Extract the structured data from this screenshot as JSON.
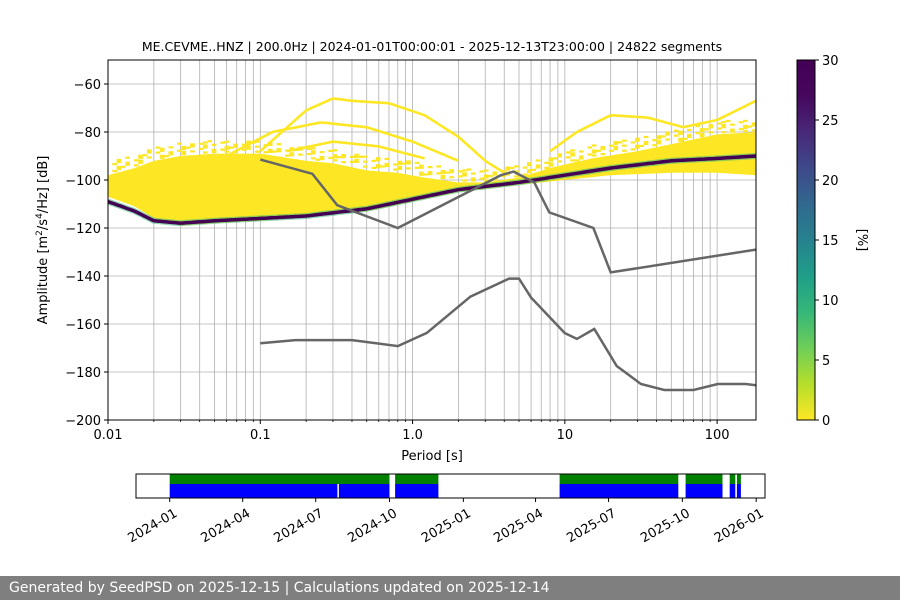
{
  "chart_data": {
    "type": "heatmap",
    "title": "ME.CEVME..HNZ | 200.0Hz | 2024-01-01T00:00:01 - 2025-12-13T23:00:00 | 24822 segments",
    "xlabel": "Period [s]",
    "ylabel_main": "Amplitude [m",
    "ylabel_sup1": "2",
    "ylabel_mid": "/s",
    "ylabel_sup2": "4",
    "ylabel_end": "/Hz] [dB]",
    "x_scale": "log",
    "xlim": [
      0.01,
      180
    ],
    "ylim": [
      -200,
      -50
    ],
    "grid": true,
    "x_ticks": [
      {
        "value": 0.01,
        "label": "0.01"
      },
      {
        "value": 0.1,
        "label": "0.1"
      },
      {
        "value": 1,
        "label": "1.0"
      },
      {
        "value": 10,
        "label": "10"
      },
      {
        "value": 100,
        "label": "100"
      }
    ],
    "y_ticks": [
      {
        "value": -60,
        "label": "−60"
      },
      {
        "value": -80,
        "label": "−80"
      },
      {
        "value": -100,
        "label": "−100"
      },
      {
        "value": -120,
        "label": "−120"
      },
      {
        "value": -140,
        "label": "−140"
      },
      {
        "value": -160,
        "label": "−160"
      },
      {
        "value": -180,
        "label": "−180"
      },
      {
        "value": -200,
        "label": "−200"
      }
    ],
    "colorbar": {
      "label": "[%]",
      "range": [
        0,
        30
      ],
      "colormap": "viridis_r",
      "ticks": [
        {
          "value": 0,
          "label": "0"
        },
        {
          "value": 5,
          "label": "5"
        },
        {
          "value": 10,
          "label": "10"
        },
        {
          "value": 15,
          "label": "15"
        },
        {
          "value": 20,
          "label": "20"
        },
        {
          "value": 25,
          "label": "25"
        },
        {
          "value": 30,
          "label": "30"
        }
      ]
    },
    "mode_line": [
      {
        "x": 0.01,
        "y": -109
      },
      {
        "x": 0.015,
        "y": -113
      },
      {
        "x": 0.02,
        "y": -117
      },
      {
        "x": 0.03,
        "y": -118
      },
      {
        "x": 0.05,
        "y": -117
      },
      {
        "x": 0.1,
        "y": -116
      },
      {
        "x": 0.2,
        "y": -115
      },
      {
        "x": 0.5,
        "y": -112
      },
      {
        "x": 1,
        "y": -108
      },
      {
        "x": 2,
        "y": -104
      },
      {
        "x": 5,
        "y": -101
      },
      {
        "x": 10,
        "y": -98
      },
      {
        "x": 20,
        "y": -95
      },
      {
        "x": 50,
        "y": -92
      },
      {
        "x": 100,
        "y": -91
      },
      {
        "x": 180,
        "y": -90
      }
    ],
    "density_lower": [
      {
        "x": 0.01,
        "y": -107
      },
      {
        "x": 0.015,
        "y": -111
      },
      {
        "x": 0.02,
        "y": -116
      },
      {
        "x": 0.03,
        "y": -119
      },
      {
        "x": 0.05,
        "y": -118
      },
      {
        "x": 0.1,
        "y": -117
      },
      {
        "x": 0.2,
        "y": -115
      },
      {
        "x": 0.5,
        "y": -113
      },
      {
        "x": 1,
        "y": -109
      },
      {
        "x": 2,
        "y": -105
      },
      {
        "x": 5,
        "y": -102
      },
      {
        "x": 10,
        "y": -100
      },
      {
        "x": 20,
        "y": -98
      },
      {
        "x": 50,
        "y": -97
      },
      {
        "x": 100,
        "y": -97
      },
      {
        "x": 180,
        "y": -98
      }
    ],
    "density_upper": [
      {
        "x": 0.01,
        "y": -98
      },
      {
        "x": 0.015,
        "y": -95
      },
      {
        "x": 0.02,
        "y": -92
      },
      {
        "x": 0.03,
        "y": -90
      },
      {
        "x": 0.05,
        "y": -89
      },
      {
        "x": 0.1,
        "y": -89
      },
      {
        "x": 0.2,
        "y": -92
      },
      {
        "x": 0.3,
        "y": -93
      },
      {
        "x": 0.5,
        "y": -96
      },
      {
        "x": 0.8,
        "y": -97
      },
      {
        "x": 1.2,
        "y": -99
      },
      {
        "x": 2,
        "y": -101
      },
      {
        "x": 3,
        "y": -101
      },
      {
        "x": 5,
        "y": -99
      },
      {
        "x": 8,
        "y": -95
      },
      {
        "x": 15,
        "y": -91
      },
      {
        "x": 30,
        "y": -88
      },
      {
        "x": 60,
        "y": -84
      },
      {
        "x": 100,
        "y": -81
      },
      {
        "x": 180,
        "y": -80
      }
    ],
    "outlier_curves": [
      [
        {
          "x": 0.1,
          "y": -88
        },
        {
          "x": 0.2,
          "y": -71
        },
        {
          "x": 0.3,
          "y": -66
        },
        {
          "x": 0.4,
          "y": -67
        },
        {
          "x": 0.7,
          "y": -68
        },
        {
          "x": 1.2,
          "y": -73
        },
        {
          "x": 2,
          "y": -82
        },
        {
          "x": 3,
          "y": -92
        },
        {
          "x": 4,
          "y": -97
        }
      ],
      [
        {
          "x": 0.06,
          "y": -90
        },
        {
          "x": 0.12,
          "y": -80
        },
        {
          "x": 0.25,
          "y": -76
        },
        {
          "x": 0.5,
          "y": -78
        },
        {
          "x": 1,
          "y": -84
        },
        {
          "x": 2,
          "y": -92
        }
      ],
      [
        {
          "x": 0.15,
          "y": -88
        },
        {
          "x": 0.3,
          "y": -84
        },
        {
          "x": 0.6,
          "y": -86
        },
        {
          "x": 1.2,
          "y": -91
        }
      ],
      [
        {
          "x": 8,
          "y": -88
        },
        {
          "x": 12,
          "y": -80
        },
        {
          "x": 20,
          "y": -73
        },
        {
          "x": 35,
          "y": -74
        },
        {
          "x": 60,
          "y": -78
        },
        {
          "x": 100,
          "y": -75
        },
        {
          "x": 180,
          "y": -67
        }
      ]
    ],
    "noise_models": [
      {
        "points": [
          {
            "x": 0.1,
            "y": -91.5
          },
          {
            "x": 0.22,
            "y": -97.4
          },
          {
            "x": 0.32,
            "y": -110.5
          },
          {
            "x": 0.8,
            "y": -120
          },
          {
            "x": 3.8,
            "y": -98
          },
          {
            "x": 4.6,
            "y": -96.5
          },
          {
            "x": 6.3,
            "y": -101
          },
          {
            "x": 7.9,
            "y": -113.5
          },
          {
            "x": 15.4,
            "y": -120
          },
          {
            "x": 20,
            "y": -138.5
          },
          {
            "x": 180,
            "y": -129
          }
        ]
      },
      {
        "points": [
          {
            "x": 0.1,
            "y": -168
          },
          {
            "x": 0.17,
            "y": -166.7
          },
          {
            "x": 0.4,
            "y": -166.7
          },
          {
            "x": 0.8,
            "y": -169.2
          },
          {
            "x": 1.24,
            "y": -163.7
          },
          {
            "x": 2.4,
            "y": -148.6
          },
          {
            "x": 4.3,
            "y": -141.1
          },
          {
            "x": 5,
            "y": -141.1
          },
          {
            "x": 6,
            "y": -149
          },
          {
            "x": 10,
            "y": -163.8
          },
          {
            "x": 12,
            "y": -166.2
          },
          {
            "x": 15.6,
            "y": -162.1
          },
          {
            "x": 21.9,
            "y": -177.5
          },
          {
            "x": 31.6,
            "y": -185
          },
          {
            "x": 45,
            "y": -187.5
          },
          {
            "x": 70,
            "y": -187.5
          },
          {
            "x": 101,
            "y": -185
          },
          {
            "x": 154,
            "y": -185
          },
          {
            "x": 180,
            "y": -185.5
          }
        ]
      }
    ],
    "availability": {
      "xaxis_ticks": [
        {
          "date": "2024-01-01",
          "label": "2024-01"
        },
        {
          "date": "2024-04-01",
          "label": "2024-04"
        },
        {
          "date": "2024-07-01",
          "label": "2024-07"
        },
        {
          "date": "2024-10-01",
          "label": "2024-10"
        },
        {
          "date": "2025-01-01",
          "label": "2025-01"
        },
        {
          "date": "2025-04-01",
          "label": "2025-04"
        },
        {
          "date": "2025-07-01",
          "label": "2025-07"
        },
        {
          "date": "2025-10-01",
          "label": "2025-10"
        },
        {
          "date": "2026-01-01",
          "label": "2026-01"
        }
      ],
      "xlim": [
        "2023-11-20",
        "2026-01-12"
      ],
      "colors": {
        "top": "#008000",
        "bottom": "#0000ff"
      },
      "intervals": [
        {
          "start": "2024-01-01",
          "end": "2024-10-01"
        },
        {
          "start": "2024-10-08",
          "end": "2024-12-01"
        },
        {
          "start": "2025-05-01",
          "end": "2025-09-26"
        },
        {
          "start": "2025-10-05",
          "end": "2025-11-20"
        },
        {
          "start": "2025-11-29",
          "end": "2025-12-06"
        },
        {
          "start": "2025-12-08",
          "end": "2025-12-13"
        }
      ],
      "bottom_gaps": [
        "2024-07-28"
      ]
    }
  },
  "footer": {
    "text": "Generated by SeedPSD on 2025-12-15 | Calculations updated on 2025-12-14"
  }
}
